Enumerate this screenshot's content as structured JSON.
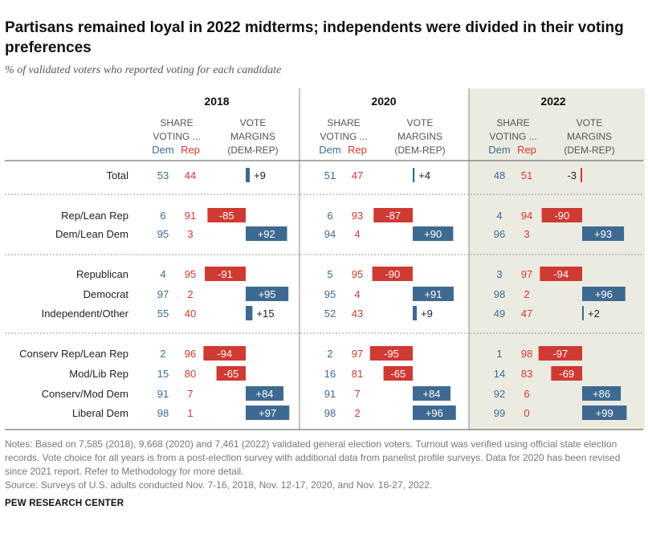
{
  "title": "Partisans remained loyal in 2022 midterms; independents were divided in their voting preferences",
  "subtitle": "% of validated voters who reported voting for each candidate",
  "headers": {
    "share": [
      "SHARE",
      "VOTING ..."
    ],
    "margin": [
      "VOTE",
      "MARGINS",
      "(DEM-REP)"
    ],
    "dem": "Dem",
    "rep": "Rep"
  },
  "colors": {
    "dem": "#3e6a91",
    "rep": "#cf3a33",
    "shade": "#ecebe1",
    "text": "#222222",
    "rule": "#999999"
  },
  "chart_data": {
    "type": "table",
    "years": [
      "2018",
      "2020",
      "2022"
    ],
    "groups": [
      [
        "Total"
      ],
      [
        "Rep/Lean Rep",
        "Dem/Lean Dem"
      ],
      [
        "Republican",
        "Democrat",
        "Independent/Other"
      ],
      [
        "Conserv Rep/Lean Rep",
        "Mod/Lib Rep",
        "Conserv/Mod Dem",
        "Liberal Dem"
      ]
    ],
    "rows": [
      {
        "label": "Total",
        "values": [
          {
            "dem": 53,
            "rep": 44,
            "margin": 9,
            "margin_label": "+9"
          },
          {
            "dem": 51,
            "rep": 47,
            "margin": 4,
            "margin_label": "+4"
          },
          {
            "dem": 48,
            "rep": 51,
            "margin": -3,
            "margin_label": "-3"
          }
        ]
      },
      {
        "label": "Rep/Lean Rep",
        "values": [
          {
            "dem": 6,
            "rep": 91,
            "margin": -85,
            "margin_label": "-85"
          },
          {
            "dem": 6,
            "rep": 93,
            "margin": -87,
            "margin_label": "-87"
          },
          {
            "dem": 4,
            "rep": 94,
            "margin": -90,
            "margin_label": "-90"
          }
        ]
      },
      {
        "label": "Dem/Lean Dem",
        "values": [
          {
            "dem": 95,
            "rep": 3,
            "margin": 92,
            "margin_label": "+92"
          },
          {
            "dem": 94,
            "rep": 4,
            "margin": 90,
            "margin_label": "+90"
          },
          {
            "dem": 96,
            "rep": 3,
            "margin": 93,
            "margin_label": "+93"
          }
        ]
      },
      {
        "label": "Republican",
        "values": [
          {
            "dem": 4,
            "rep": 95,
            "margin": -91,
            "margin_label": "-91"
          },
          {
            "dem": 5,
            "rep": 95,
            "margin": -90,
            "margin_label": "-90"
          },
          {
            "dem": 3,
            "rep": 97,
            "margin": -94,
            "margin_label": "-94"
          }
        ]
      },
      {
        "label": "Democrat",
        "values": [
          {
            "dem": 97,
            "rep": 2,
            "margin": 95,
            "margin_label": "+95"
          },
          {
            "dem": 95,
            "rep": 4,
            "margin": 91,
            "margin_label": "+91"
          },
          {
            "dem": 98,
            "rep": 2,
            "margin": 96,
            "margin_label": "+96"
          }
        ]
      },
      {
        "label": "Independent/Other",
        "values": [
          {
            "dem": 55,
            "rep": 40,
            "margin": 15,
            "margin_label": "+15"
          },
          {
            "dem": 52,
            "rep": 43,
            "margin": 9,
            "margin_label": "+9"
          },
          {
            "dem": 49,
            "rep": 47,
            "margin": 2,
            "margin_label": "+2"
          }
        ]
      },
      {
        "label": "Conserv Rep/Lean Rep",
        "values": [
          {
            "dem": 2,
            "rep": 96,
            "margin": -94,
            "margin_label": "-94"
          },
          {
            "dem": 2,
            "rep": 97,
            "margin": -95,
            "margin_label": "-95"
          },
          {
            "dem": 1,
            "rep": 98,
            "margin": -97,
            "margin_label": "-97"
          }
        ]
      },
      {
        "label": "Mod/Lib Rep",
        "values": [
          {
            "dem": 15,
            "rep": 80,
            "margin": -65,
            "margin_label": "-65"
          },
          {
            "dem": 16,
            "rep": 81,
            "margin": -65,
            "margin_label": "-65"
          },
          {
            "dem": 14,
            "rep": 83,
            "margin": -69,
            "margin_label": "-69"
          }
        ]
      },
      {
        "label": "Conserv/Mod Dem",
        "values": [
          {
            "dem": 91,
            "rep": 7,
            "margin": 84,
            "margin_label": "+84"
          },
          {
            "dem": 91,
            "rep": 7,
            "margin": 84,
            "margin_label": "+84"
          },
          {
            "dem": 92,
            "rep": 6,
            "margin": 86,
            "margin_label": "+86"
          }
        ]
      },
      {
        "label": "Liberal Dem",
        "values": [
          {
            "dem": 98,
            "rep": 1,
            "margin": 97,
            "margin_label": "+97"
          },
          {
            "dem": 98,
            "rep": 2,
            "margin": 96,
            "margin_label": "+96"
          },
          {
            "dem": 99,
            "rep": 0,
            "margin": 99,
            "margin_label": "+99"
          }
        ]
      }
    ],
    "highlighted_year": "2022"
  },
  "notes": "Notes: Based on 7,585 (2018), 9,668 (2020) and 7,461 (2022) validated general election voters. Turnout was verified using official state election records. Vote choice for all years is from a post-election survey with additional data from panelist profile surveys. Data for 2020 has been revised since 2021 report. Refer to Methodology for more detail.",
  "source": "Source: Surveys of U.S. adults conducted Nov. 7-16, 2018, Nov. 12-17, 2020, and Nov. 16-27, 2022.",
  "brand": "PEW RESEARCH CENTER"
}
